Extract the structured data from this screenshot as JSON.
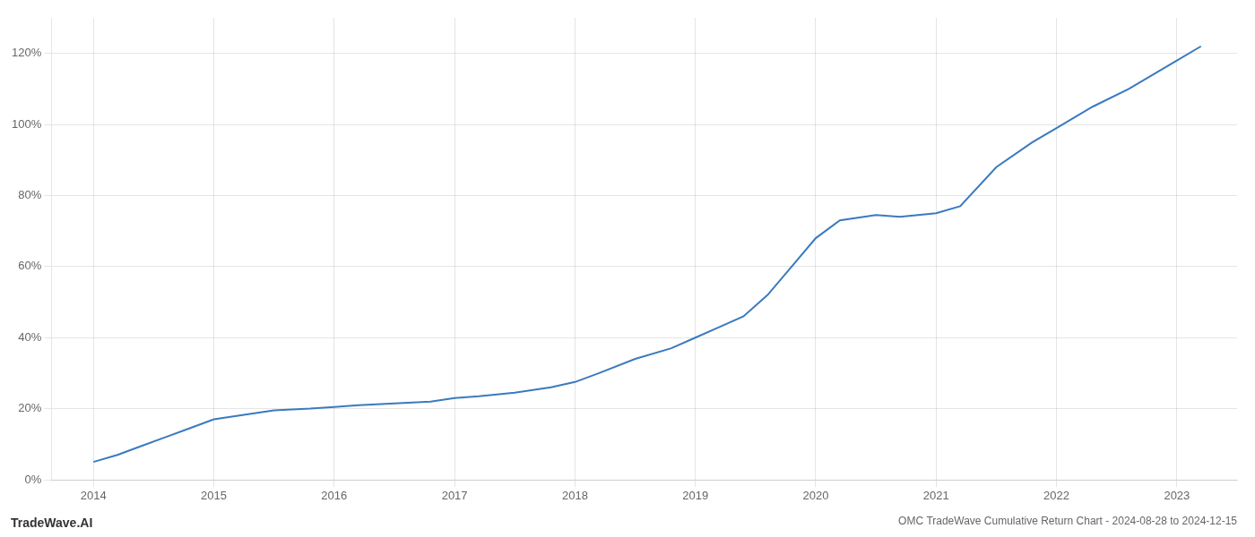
{
  "chart_data": {
    "type": "line",
    "title": "OMC TradeWave Cumulative Return Chart - 2024-08-28 to 2024-12-15",
    "annotations": [
      "TradeWave.AI"
    ],
    "x": [
      2014.0,
      2014.2,
      2014.4,
      2014.6,
      2014.8,
      2015.0,
      2015.2,
      2015.5,
      2015.8,
      2016.0,
      2016.2,
      2016.5,
      2016.8,
      2017.0,
      2017.2,
      2017.5,
      2017.8,
      2018.0,
      2018.2,
      2018.5,
      2018.8,
      2019.0,
      2019.2,
      2019.4,
      2019.6,
      2019.8,
      2020.0,
      2020.2,
      2020.5,
      2020.7,
      2021.0,
      2021.2,
      2021.5,
      2021.8,
      2022.0,
      2022.3,
      2022.6,
      2023.0,
      2023.2
    ],
    "values": [
      5.0,
      7.0,
      9.5,
      12.0,
      14.5,
      17.0,
      18.0,
      19.5,
      20.0,
      20.5,
      21.0,
      21.5,
      22.0,
      23.0,
      23.5,
      24.5,
      26.0,
      27.5,
      30.0,
      34.0,
      37.0,
      40.0,
      43.0,
      46.0,
      52.0,
      60.0,
      68.0,
      73.0,
      74.5,
      74.0,
      75.0,
      77.0,
      88.0,
      95.0,
      99.0,
      105.0,
      110.0,
      118.0,
      122.0
    ],
    "color": "#3a7abf",
    "xlim": [
      2013.65,
      2023.5
    ],
    "xticks": [
      2014,
      2015,
      2016,
      2017,
      2018,
      2019,
      2020,
      2021,
      2022,
      2023
    ],
    "ylim": [
      0,
      130
    ],
    "yticks": [
      {
        "value": 0,
        "label": "0%"
      },
      {
        "value": 20,
        "label": "20%"
      },
      {
        "value": 40,
        "label": "40%"
      },
      {
        "value": 60,
        "label": "60%"
      },
      {
        "value": 80,
        "label": "80%"
      },
      {
        "value": 100,
        "label": "100%"
      },
      {
        "value": 120,
        "label": "120%"
      }
    ],
    "grid": true
  }
}
